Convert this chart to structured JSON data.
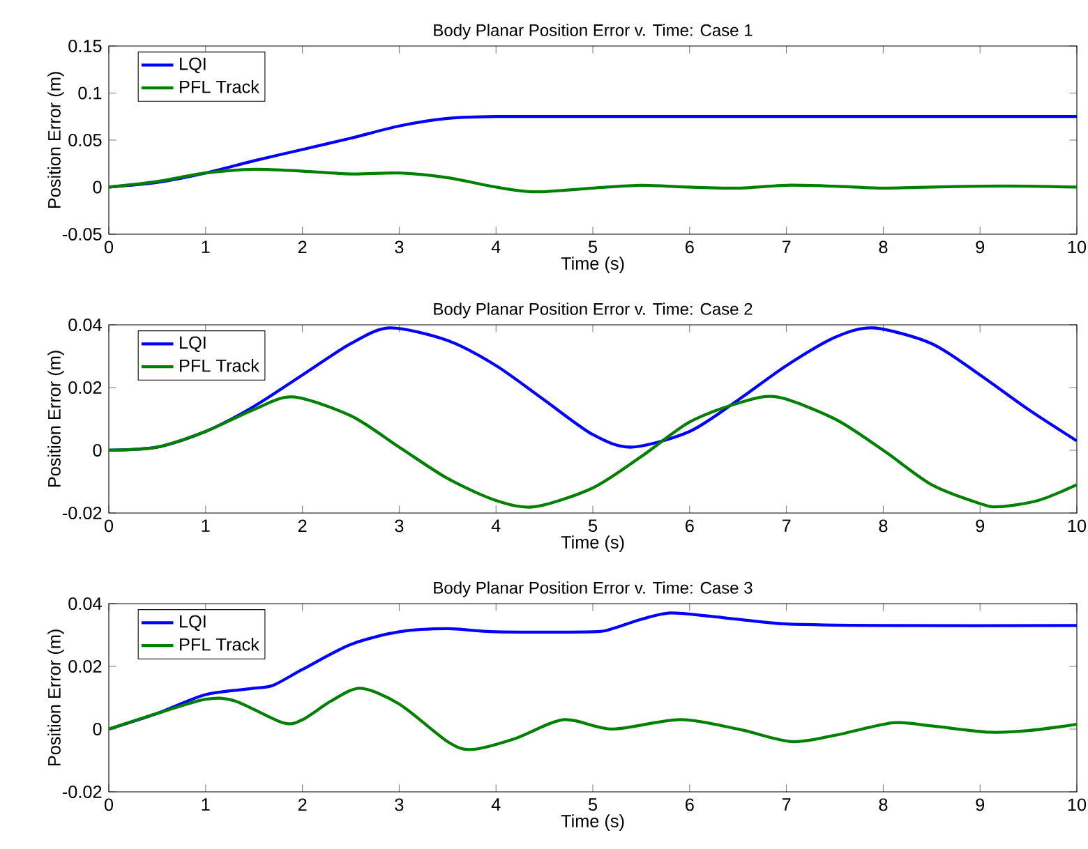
{
  "chart_data": [
    {
      "type": "line",
      "title": "Body Planar Position Error v. Time: Case 1",
      "xlabel": "Time (s)",
      "ylabel": "Position Error (m)",
      "xlim": [
        0,
        10
      ],
      "ylim": [
        -0.05,
        0.15
      ],
      "xticks": [
        0,
        1,
        2,
        3,
        4,
        5,
        6,
        7,
        8,
        9,
        10
      ],
      "yticks": [
        -0.05,
        0,
        0.05,
        0.1,
        0.15
      ],
      "legend": "top left",
      "grid": false,
      "line_style": "solid",
      "series": [
        {
          "name": "LQI",
          "color": "#0000ff",
          "x": [
            0,
            0.5,
            1,
            1.5,
            2,
            2.5,
            3,
            3.5,
            4,
            5,
            6,
            7,
            8,
            9,
            10
          ],
          "values": [
            0,
            0.005,
            0.015,
            0.028,
            0.04,
            0.052,
            0.065,
            0.073,
            0.075,
            0.075,
            0.075,
            0.075,
            0.075,
            0.075,
            0.075
          ]
        },
        {
          "name": "PFL Track",
          "color": "#008000",
          "x": [
            0,
            0.5,
            1,
            1.5,
            2,
            2.5,
            3,
            3.5,
            4,
            4.4,
            5,
            5.5,
            6,
            6.5,
            7,
            7.5,
            8,
            8.5,
            9,
            9.5,
            10
          ],
          "values": [
            0,
            0.006,
            0.015,
            0.019,
            0.017,
            0.014,
            0.015,
            0.01,
            0.0,
            -0.005,
            -0.001,
            0.002,
            0.0,
            -0.001,
            0.002,
            0.001,
            -0.001,
            0,
            0.001,
            0.001,
            0
          ]
        }
      ]
    },
    {
      "type": "line",
      "title": "Body Planar Position Error v. Time: Case 2",
      "xlabel": "Time (s)",
      "ylabel": "Position Error (m)",
      "xlim": [
        0,
        10
      ],
      "ylim": [
        -0.02,
        0.04
      ],
      "xticks": [
        0,
        1,
        2,
        3,
        4,
        5,
        6,
        7,
        8,
        9,
        10
      ],
      "yticks": [
        -0.02,
        0,
        0.02,
        0.04
      ],
      "legend": "top left",
      "grid": false,
      "line_style": "solid",
      "series": [
        {
          "name": "LQI",
          "color": "#0000ff",
          "x": [
            0,
            0.5,
            1,
            1.5,
            2,
            2.5,
            2.9,
            3.5,
            4,
            4.5,
            5,
            5.4,
            6,
            6.5,
            7,
            7.5,
            7.9,
            8.5,
            9,
            9.5,
            10
          ],
          "values": [
            0,
            0.001,
            0.006,
            0.014,
            0.024,
            0.034,
            0.039,
            0.035,
            0.027,
            0.016,
            0.005,
            0.001,
            0.006,
            0.016,
            0.027,
            0.036,
            0.039,
            0.034,
            0.024,
            0.013,
            0.003
          ]
        },
        {
          "name": "PFL Track",
          "color": "#008000",
          "x": [
            0,
            0.5,
            1,
            1.5,
            1.9,
            2.5,
            3,
            3.5,
            4,
            4.4,
            5,
            5.5,
            6,
            6.5,
            6.9,
            7.5,
            8,
            8.5,
            9,
            9.2,
            9.6,
            10
          ],
          "values": [
            0,
            0.001,
            0.006,
            0.013,
            0.017,
            0.011,
            0.001,
            -0.009,
            -0.016,
            -0.018,
            -0.012,
            -0.002,
            0.009,
            0.015,
            0.017,
            0.01,
            0.0,
            -0.011,
            -0.017,
            -0.018,
            -0.016,
            -0.011
          ]
        }
      ]
    },
    {
      "type": "line",
      "title": "Body Planar Position Error v. Time: Case 3",
      "xlabel": "Time (s)",
      "ylabel": "Position Error (m)",
      "xlim": [
        0,
        10
      ],
      "ylim": [
        -0.02,
        0.04
      ],
      "xticks": [
        0,
        1,
        2,
        3,
        4,
        5,
        6,
        7,
        8,
        9,
        10
      ],
      "yticks": [
        -0.02,
        0,
        0.02,
        0.04
      ],
      "legend": "top left",
      "grid": false,
      "line_style": "solid",
      "series": [
        {
          "name": "LQI",
          "color": "#0000ff",
          "x": [
            0,
            0.5,
            1,
            1.5,
            1.7,
            2,
            2.5,
            3,
            3.5,
            4,
            5,
            5.2,
            5.5,
            5.8,
            6.2,
            6.5,
            7,
            8,
            10
          ],
          "values": [
            0,
            0.005,
            0.011,
            0.013,
            0.014,
            0.019,
            0.027,
            0.031,
            0.032,
            0.031,
            0.031,
            0.032,
            0.035,
            0.037,
            0.036,
            0.035,
            0.0335,
            0.033,
            0.033
          ]
        },
        {
          "name": "PFL Track",
          "color": "#008000",
          "x": [
            0,
            0.5,
            1,
            1.3,
            1.8,
            2,
            2.3,
            2.6,
            3,
            3.5,
            3.75,
            4.2,
            4.7,
            5.2,
            5.9,
            6.5,
            7.05,
            7.5,
            8.1,
            8.5,
            9.1,
            9.5,
            10
          ],
          "values": [
            0,
            0.005,
            0.0095,
            0.009,
            0.002,
            0.003,
            0.009,
            0.013,
            0.008,
            -0.004,
            -0.0065,
            -0.003,
            0.003,
            0.0,
            0.003,
            0.0,
            -0.004,
            -0.002,
            0.002,
            0.001,
            -0.001,
            -0.0005,
            0.0015
          ]
        }
      ]
    }
  ]
}
